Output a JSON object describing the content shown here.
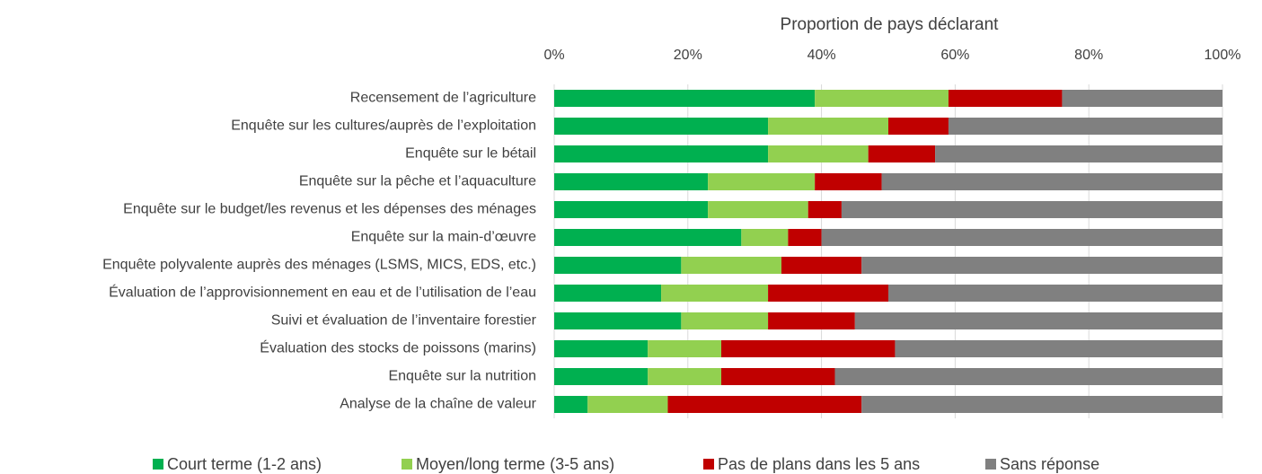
{
  "chart_data": {
    "type": "stacked_bar_horizontal",
    "xlabel": "Proportion de pays déclarant",
    "categories": [
      "Recensement de l’agriculture",
      "Enquête sur les cultures/auprès de l’exploitation",
      "Enquête sur le bétail",
      "Enquête sur la pêche et l’aquaculture",
      "Enquête sur le budget/les revenus et les dépenses des ménages",
      "Enquête sur la main-d’œuvre",
      "Enquête polyvalente auprès des ménages (LSMS, MICS, EDS, etc.)",
      "Évaluation de l’approvisionnement en eau et de l’utilisation de l’eau",
      "Suivi et évaluation de l’inventaire forestier",
      "Évaluation des stocks de poissons (marins)",
      "Enquête sur la nutrition",
      "Analyse de la chaîne de valeur"
    ],
    "series": [
      {
        "name": "Court terme (1-2 ans)",
        "color": "#00b050",
        "values": [
          39,
          32,
          32,
          23,
          23,
          28,
          19,
          16,
          19,
          14,
          14,
          5
        ]
      },
      {
        "name": "Moyen/long terme (3-5 ans)",
        "color": "#92d050",
        "values": [
          20,
          18,
          15,
          16,
          15,
          7,
          15,
          16,
          13,
          11,
          11,
          12
        ]
      },
      {
        "name": "Pas de plans dans les 5 ans",
        "color": "#c00000",
        "values": [
          17,
          9,
          10,
          10,
          5,
          5,
          12,
          18,
          13,
          26,
          17,
          29
        ]
      },
      {
        "name": "Sans réponse",
        "color": "#808080",
        "values": [
          24,
          41,
          43,
          51,
          57,
          60,
          54,
          50,
          55,
          49,
          58,
          54
        ]
      }
    ],
    "xlim": [
      0,
      100
    ],
    "xticks": [
      {
        "value": 0,
        "label": "0%"
      },
      {
        "value": 20,
        "label": "20%"
      },
      {
        "value": 40,
        "label": "40%"
      },
      {
        "value": 60,
        "label": "60%"
      },
      {
        "value": 80,
        "label": "80%"
      },
      {
        "value": 100,
        "label": "100%"
      }
    ],
    "grid": true,
    "legend": "bottom"
  }
}
